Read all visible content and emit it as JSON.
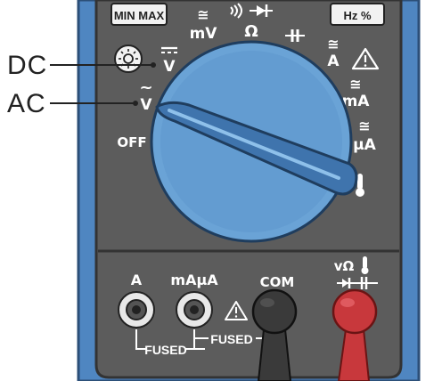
{
  "buttons": {
    "minmax_label": "MIN MAX",
    "hz_label": "Hz %"
  },
  "dial_labels": {
    "mv": "mV",
    "mv_symbol": "≅",
    "ohm": "Ω",
    "capacitance": "⊣⊢",
    "amps": "A",
    "amps_symbol": "≅",
    "dc_volts": "V",
    "ac_volts": "V",
    "ac_symbol": "~",
    "milliamps": "mA",
    "milliamps_symbol": "≅",
    "microamps": "μA",
    "microamps_symbol": "≅",
    "off": "OFF",
    "warning": "⚠"
  },
  "callouts": {
    "dc": "DC",
    "ac": "AC"
  },
  "jacks": {
    "a_label": "A",
    "ma_label": "mAμA",
    "com_label": "COM",
    "vohm_label": "vΩ",
    "fused_1": "FUSED",
    "fused_2": "FUSED"
  },
  "colors": {
    "case_blue": "#4f86c1",
    "panel_gray": "#5c5c5c",
    "dial_blue": "#6aa3d6",
    "probe_red": "#c8383c",
    "probe_black": "#3a3a3a"
  }
}
